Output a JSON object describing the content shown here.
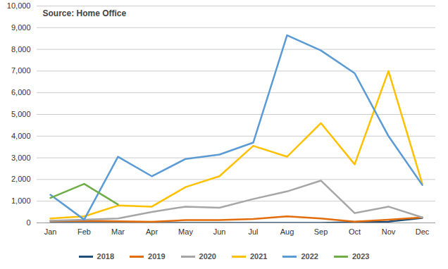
{
  "chart_data": {
    "type": "line",
    "annotation": "Source: Home Office",
    "categories": [
      "Jan",
      "Feb",
      "Mar",
      "Apr",
      "May",
      "Jun",
      "Jul",
      "Aug",
      "Sep",
      "Oct",
      "Nov",
      "Dec"
    ],
    "series": [
      {
        "name": "2018",
        "color": "#1f4e79",
        "values": [
          0,
          0,
          0,
          0,
          0,
          0,
          0,
          0,
          0,
          30,
          60,
          230
        ]
      },
      {
        "name": "2019",
        "color": "#e36c0a",
        "values": [
          80,
          100,
          70,
          50,
          130,
          130,
          180,
          300,
          200,
          60,
          150,
          250
        ]
      },
      {
        "name": "2020",
        "color": "#a6a6a6",
        "values": [
          100,
          150,
          200,
          500,
          750,
          700,
          1100,
          1450,
          1950,
          450,
          750,
          250
        ]
      },
      {
        "name": "2021",
        "color": "#ffc000",
        "values": [
          200,
          300,
          800,
          750,
          1650,
          2150,
          3550,
          3050,
          4600,
          2700,
          7000,
          1800
        ]
      },
      {
        "name": "2022",
        "color": "#5b9bd5",
        "values": [
          1300,
          150,
          3050,
          2150,
          2950,
          3150,
          3700,
          8650,
          7950,
          6900,
          4000,
          1750
        ]
      },
      {
        "name": "2023",
        "color": "#70ad47",
        "values": [
          1150,
          1800,
          850,
          null,
          null,
          null,
          null,
          null,
          null,
          null,
          null,
          null
        ]
      }
    ],
    "ylim": [
      0,
      10000
    ],
    "yticks": [
      0,
      {
        "value": 1000,
        "label": "1,000"
      },
      {
        "value": 2000,
        "label": "2,000"
      },
      {
        "value": 3000,
        "label": "3,000"
      },
      {
        "value": 4000,
        "label": "4,000"
      },
      {
        "value": 5000,
        "label": "5,000"
      },
      {
        "value": 6000,
        "label": "6,000"
      },
      {
        "value": 7000,
        "label": "7,000"
      },
      {
        "value": 8000,
        "label": "8,000"
      },
      {
        "value": 9000,
        "label": "9,000"
      },
      {
        "value": 10000,
        "label": "10,000"
      }
    ],
    "grid": true,
    "legend": "bottom"
  }
}
